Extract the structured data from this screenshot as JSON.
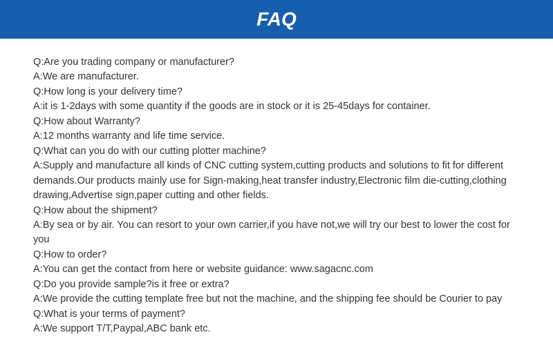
{
  "header": {
    "title": "FAQ",
    "background_color": "#155fad",
    "text_color": "#ffffff",
    "font_size": 28,
    "font_style": "italic",
    "font_weight": "bold"
  },
  "content": {
    "text_color": "#333333",
    "font_size": 14.5,
    "line_height": 1.48,
    "lines": [
      "Q:Are you trading company or manufacturer?",
      "A:We are manufacturer.",
      "Q:How long is your delivery time?",
      "A:it is 1-2days with some quantity if the goods are in stock or it is 25-45days for container.",
      "Q:How about Warranty?",
      "A:12 months warranty and life time service.",
      "Q:What can you do with our cutting plotter machine?",
      "A:Supply and manufacture all kinds of CNC cutting system,cutting products and solutions to fit for different demands.Our products mainly use for Sign-making,heat transfer industry,Electronic film die-cutting,clothing drawing,Advertise sign,paper cutting and other fields.",
      "Q:How about the shipment?",
      "A:By sea or by air. You can resort to your own carrier,if you have not,we will try our best to lower the cost for you",
      "Q:How to order?",
      "A:You can get the contact from here or website guidance: www.sagacnc.com",
      "Q:Do you provide sample?is it free or extra?",
      "A:We provide the cutting template free but not the machine, and the shipping fee should be Courier to pay",
      "Q:What is your terms of payment?",
      "A:We support T/T,Paypal,ABC bank etc."
    ]
  }
}
